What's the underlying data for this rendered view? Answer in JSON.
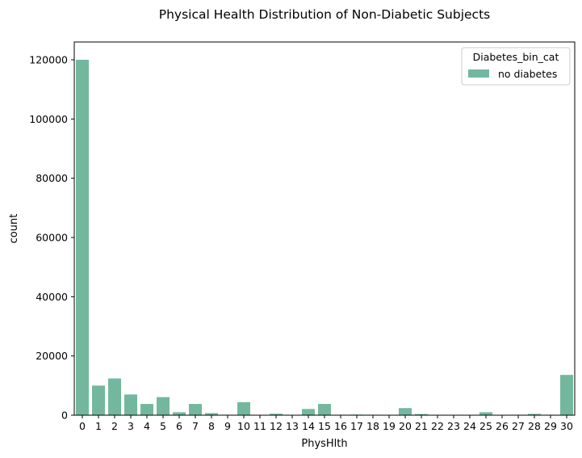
{
  "chart_data": {
    "type": "bar",
    "title": "Physical Health Distribution of Non-Diabetic Subjects",
    "xlabel": "PhysHlth",
    "ylabel": "count",
    "categories": [
      "0",
      "1",
      "2",
      "3",
      "4",
      "5",
      "6",
      "7",
      "8",
      "9",
      "10",
      "11",
      "12",
      "13",
      "14",
      "15",
      "16",
      "17",
      "18",
      "19",
      "20",
      "21",
      "22",
      "23",
      "24",
      "25",
      "26",
      "27",
      "28",
      "29",
      "30"
    ],
    "series": [
      {
        "name": "no diabetes",
        "color": "#73b89e",
        "values": [
          120000,
          10000,
          12400,
          7000,
          3800,
          6100,
          1000,
          3800,
          700,
          150,
          4400,
          50,
          500,
          50,
          2100,
          3800,
          150,
          200,
          150,
          20,
          2400,
          400,
          50,
          50,
          50,
          1000,
          80,
          150,
          450,
          150,
          13600
        ]
      }
    ],
    "ylim": [
      0,
      126000
    ],
    "yticks": [
      0,
      20000,
      40000,
      60000,
      80000,
      100000,
      120000
    ],
    "legend": {
      "title": "Diabetes_bin_cat",
      "position": "top-right"
    },
    "grid": false
  }
}
